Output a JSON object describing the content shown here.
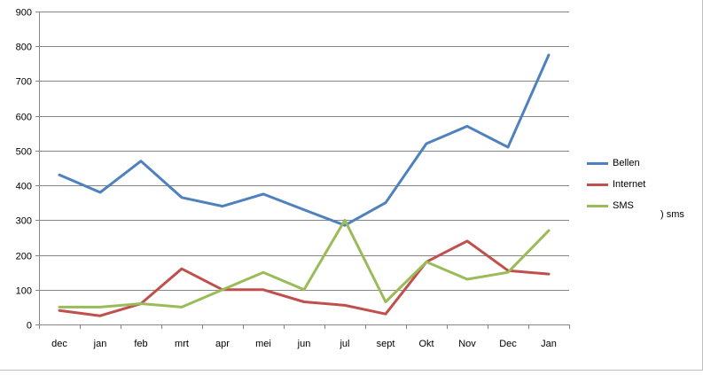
{
  "chart_data": {
    "type": "line",
    "categories": [
      "dec",
      "jan",
      "feb",
      "mrt",
      "apr",
      "mei",
      "jun",
      "jul",
      "sept",
      "Okt",
      "Nov",
      "Dec",
      "Jan"
    ],
    "ylim": [
      0,
      900
    ],
    "yticks": [
      0,
      100,
      200,
      300,
      400,
      500,
      600,
      700,
      800,
      900
    ],
    "grid": "horizontal",
    "legend_position": "right",
    "series": [
      {
        "name": "Bellen",
        "color": "#4f81bd",
        "values": [
          430,
          380,
          470,
          365,
          340,
          375,
          330,
          285,
          350,
          520,
          570,
          510,
          775
        ]
      },
      {
        "name": "Internet",
        "color": "#c0504d",
        "values": [
          40,
          25,
          60,
          160,
          100,
          100,
          65,
          55,
          30,
          180,
          240,
          155,
          145
        ]
      },
      {
        "name": "SMS",
        "color": "#9bbb59",
        "values": [
          50,
          50,
          60,
          50,
          100,
          150,
          100,
          300,
          65,
          180,
          130,
          150,
          270
        ]
      }
    ]
  },
  "stray_label": ") sms"
}
